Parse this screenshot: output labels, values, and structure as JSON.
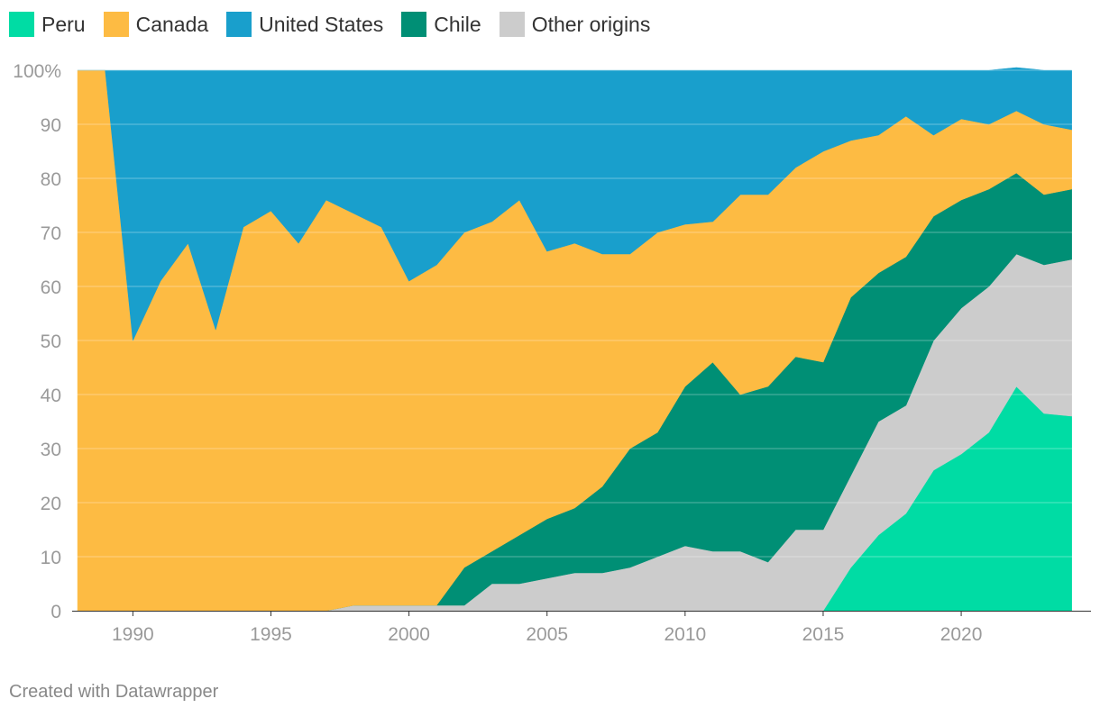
{
  "chart_data": {
    "type": "area",
    "stacked": true,
    "normalized": true,
    "x": [
      1988,
      1989,
      1990,
      1991,
      1992,
      1993,
      1994,
      1995,
      1996,
      1997,
      1998,
      1999,
      2000,
      2001,
      2002,
      2003,
      2004,
      2005,
      2006,
      2007,
      2008,
      2009,
      2010,
      2011,
      2012,
      2013,
      2014,
      2015,
      2016,
      2017,
      2018,
      2019,
      2020,
      2021,
      2022,
      2023,
      2024
    ],
    "series": [
      {
        "name": "Peru",
        "color": "#00dca4",
        "values": [
          0,
          0,
          0,
          0,
          0,
          0,
          0,
          0,
          0,
          0,
          0,
          0,
          0,
          0,
          0,
          0,
          0,
          0,
          0,
          0,
          0,
          0,
          0,
          0,
          0,
          0,
          0,
          0,
          8,
          14,
          18,
          26,
          29,
          33,
          41.5,
          36.5,
          36
        ]
      },
      {
        "name": "Other origins",
        "color": "#cccccc",
        "values": [
          0,
          0,
          0,
          0,
          0,
          0,
          0,
          0,
          0,
          0,
          1,
          1,
          1,
          1,
          1,
          5,
          5,
          6,
          7,
          7,
          8,
          10,
          12,
          11,
          11,
          9,
          15,
          15,
          17,
          21,
          20,
          24,
          27,
          27,
          24.5,
          27.5,
          29
        ]
      },
      {
        "name": "Chile",
        "color": "#008f75",
        "values": [
          0,
          0,
          0,
          0,
          0,
          0,
          0,
          0,
          0,
          0,
          0,
          0,
          0,
          0,
          7,
          6,
          9,
          11,
          12,
          16,
          22,
          23,
          29.5,
          35,
          29,
          32.5,
          32,
          31,
          33,
          27.5,
          27.5,
          23,
          20,
          18,
          15,
          13,
          13
        ]
      },
      {
        "name": "Canada",
        "color": "#fdbb43",
        "values": [
          100,
          100,
          50,
          61,
          68,
          52,
          71,
          74,
          68,
          76,
          72.5,
          70,
          60,
          63,
          62,
          61,
          62,
          49.5,
          49,
          43,
          36,
          37,
          30,
          26,
          37,
          35.5,
          35,
          39,
          29,
          25.5,
          26,
          15,
          15,
          12,
          11.5,
          13,
          11
        ]
      },
      {
        "name": "United States",
        "color": "#199fcc",
        "values": [
          0,
          0,
          50,
          39,
          32,
          48,
          29,
          26,
          32,
          24,
          26.5,
          29,
          39,
          36,
          30,
          28,
          24,
          33.5,
          32,
          34,
          34,
          30,
          28.5,
          28,
          23,
          23,
          18,
          15,
          13,
          12,
          8.5,
          12,
          9,
          10,
          8,
          10,
          11
        ]
      }
    ],
    "legend": [
      "Peru",
      "Canada",
      "United States",
      "Chile",
      "Other origins"
    ],
    "legend_placement": "top-left",
    "y_tick_labels": [
      "0",
      "10",
      "20",
      "30",
      "40",
      "50",
      "60",
      "70",
      "80",
      "90",
      "100%"
    ],
    "y_ticks": [
      0,
      10,
      20,
      30,
      40,
      50,
      60,
      70,
      80,
      90,
      100
    ],
    "x_ticks": [
      1990,
      1995,
      2000,
      2005,
      2010,
      2015,
      2020
    ],
    "xlim": [
      1987.8,
      2024.7
    ],
    "ylim": [
      0,
      100
    ],
    "grid": true
  },
  "footer": "Created with Datawrapper"
}
